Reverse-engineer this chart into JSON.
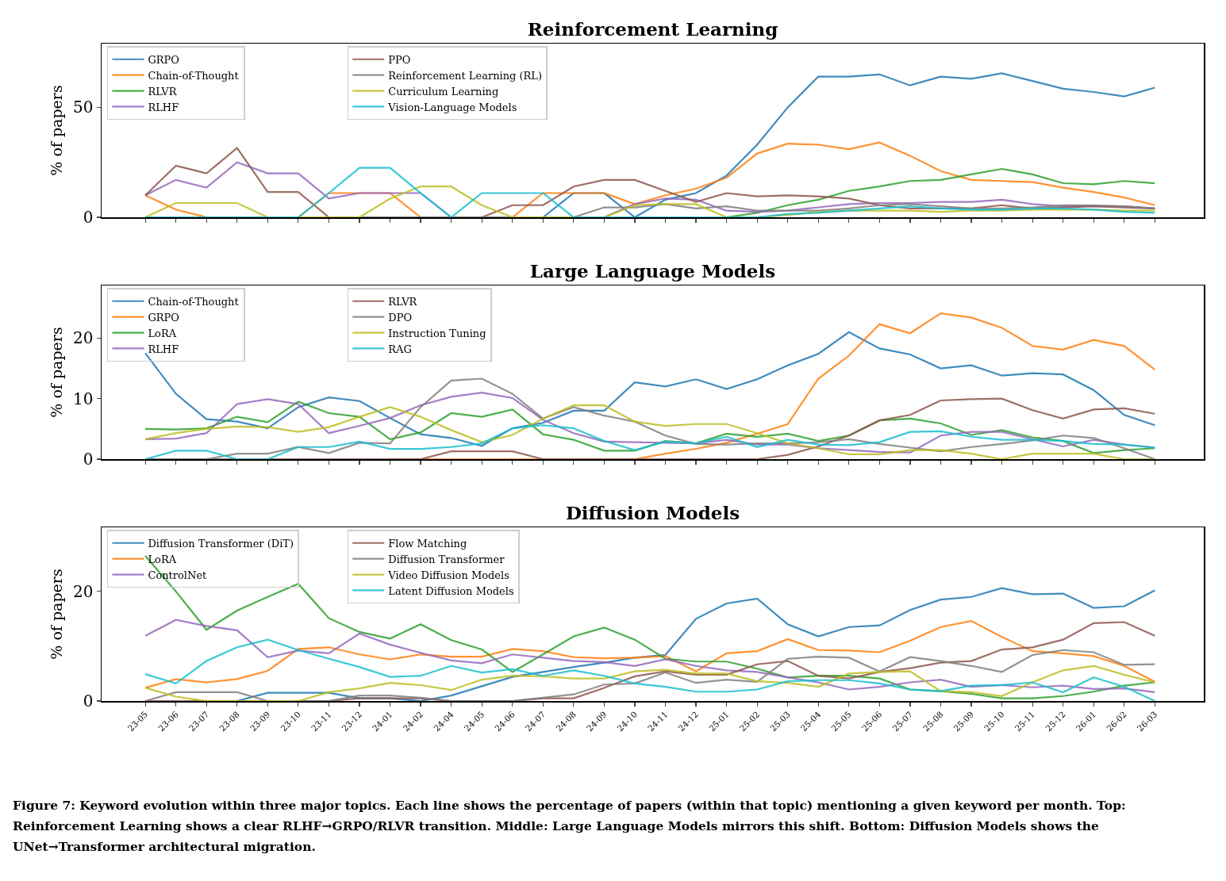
{
  "chart_data": [
    {
      "type": "line",
      "title": "Reinforcement Learning",
      "ylabel": "% of papers",
      "legend": "top left",
      "tick_labels": "y",
      "categories": [
        "23-05",
        "23-06",
        "23-07",
        "23-08",
        "23-09",
        "23-10",
        "23-11",
        "23-12",
        "24-01",
        "24-02",
        "24-04",
        "24-05",
        "24-06",
        "24-07",
        "24-08",
        "24-09",
        "24-10",
        "24-11",
        "24-12",
        "25-01",
        "25-02",
        "25-03",
        "25-04",
        "25-05",
        "25-06",
        "25-07",
        "25-08",
        "25-09",
        "25-10",
        "25-11",
        "25-12",
        "26-01",
        "26-02",
        "26-03"
      ],
      "ylim": [
        0,
        79
      ],
      "yticks": [
        0,
        50
      ],
      "series": [
        {
          "name": "GRPO",
          "color": "#1f77b4",
          "values": [
            null,
            null,
            null,
            null,
            null,
            null,
            null,
            null,
            null,
            null,
            null,
            null,
            null,
            0,
            11,
            11,
            0,
            8,
            11,
            19,
            33,
            50,
            64,
            64,
            65,
            60,
            64,
            63,
            65.5,
            62,
            58.5,
            57,
            55,
            59
          ]
        },
        {
          "name": "Chain-of-Thought",
          "color": "#ff7f0e",
          "values": [
            10,
            3.5,
            0,
            0,
            0,
            0,
            11,
            11,
            11,
            0,
            0,
            0,
            0,
            11,
            11,
            11,
            6,
            10,
            13,
            18,
            29,
            33.5,
            33,
            31,
            34,
            28,
            21,
            17,
            16.5,
            16,
            13.5,
            11.5,
            9,
            5.5
          ]
        },
        {
          "name": "RLVR",
          "color": "#2ca02c",
          "values": [
            null,
            null,
            null,
            null,
            null,
            null,
            null,
            null,
            null,
            null,
            null,
            null,
            null,
            null,
            null,
            null,
            null,
            null,
            null,
            0,
            2,
            5.5,
            8,
            12,
            14,
            16.5,
            17,
            19.5,
            22,
            19.5,
            15.5,
            15,
            16.5,
            15.5
          ]
        },
        {
          "name": "RLHF",
          "color": "#9467bd",
          "values": [
            10,
            17,
            13.5,
            25,
            20,
            20,
            8.5,
            11,
            11,
            11,
            0,
            0,
            0,
            0,
            0,
            0,
            6,
            8.5,
            8,
            3,
            2.5,
            3,
            4.5,
            6,
            6.5,
            6.5,
            7,
            7,
            8,
            6,
            5,
            5,
            5,
            4
          ]
        },
        {
          "name": "PPO",
          "color": "#8c564b",
          "values": [
            10,
            23.5,
            20,
            31.5,
            11.5,
            11.5,
            0,
            0,
            0,
            0,
            0,
            0,
            5.5,
            5.5,
            14,
            17,
            17,
            12,
            7,
            11,
            9.5,
            10,
            9.5,
            8.5,
            5.5,
            4,
            4,
            4,
            5.5,
            4,
            4.5,
            5,
            4.5,
            4
          ]
        },
        {
          "name": "Reinforcement Learning (RL)",
          "color": "#7f7f7f",
          "values": [
            0,
            0,
            0,
            0,
            0,
            0,
            0,
            0,
            0,
            0,
            0,
            0,
            0,
            0,
            0,
            4.5,
            4.5,
            6,
            4,
            5,
            3,
            3,
            3,
            4,
            5.5,
            6,
            5,
            4,
            4,
            4.5,
            5.5,
            5.5,
            5,
            4
          ]
        },
        {
          "name": "Curriculum Learning",
          "color": "#bcbd22",
          "values": [
            0,
            6.5,
            6.5,
            6.5,
            0,
            0,
            0,
            0,
            8.5,
            14,
            14,
            5.5,
            0,
            0,
            0,
            0,
            5.5,
            6,
            6,
            0,
            0,
            1,
            2.5,
            3,
            3,
            3,
            2.5,
            3,
            3,
            3.5,
            3.5,
            3.5,
            3,
            3
          ]
        },
        {
          "name": "Vision-Language Models",
          "color": "#17becf",
          "values": [
            0,
            0,
            0,
            0,
            0,
            0,
            11,
            22.5,
            22.5,
            11,
            0,
            11,
            11,
            11,
            0,
            0,
            0,
            0,
            0,
            0,
            0,
            1.5,
            2,
            3,
            4,
            5,
            4,
            3.5,
            3.5,
            4,
            4,
            3.5,
            2.5,
            2
          ]
        }
      ]
    },
    {
      "type": "line",
      "title": "Large Language Models",
      "ylabel": "% of papers",
      "legend": "top left",
      "tick_labels": "y",
      "categories": [
        "23-05",
        "23-06",
        "23-07",
        "23-08",
        "23-09",
        "23-10",
        "23-11",
        "23-12",
        "24-01",
        "24-02",
        "24-04",
        "24-05",
        "24-06",
        "24-07",
        "24-08",
        "24-09",
        "24-10",
        "24-11",
        "24-12",
        "25-01",
        "25-02",
        "25-03",
        "25-04",
        "25-05",
        "25-06",
        "25-07",
        "25-08",
        "25-09",
        "25-10",
        "25-11",
        "25-12",
        "26-01",
        "26-02",
        "26-03"
      ],
      "ylim": [
        0,
        28.7
      ],
      "yticks": [
        0,
        10,
        20
      ],
      "series": [
        {
          "name": "Chain-of-Thought",
          "color": "#1f77b4",
          "values": [
            17.5,
            10.8,
            6.6,
            6.2,
            5.1,
            8.6,
            10.2,
            9.6,
            6.8,
            4.1,
            3.5,
            2.2,
            5.1,
            6,
            8,
            8,
            12.7,
            12,
            13.2,
            11.6,
            13.2,
            15.5,
            17.4,
            21,
            18.3,
            17.3,
            15,
            15.5,
            13.8,
            14.2,
            14,
            11.4,
            7.3,
            5.6
          ]
        },
        {
          "name": "GRPO",
          "color": "#ff7f0e",
          "values": [
            null,
            null,
            null,
            null,
            null,
            null,
            null,
            null,
            0,
            0,
            0,
            0,
            0,
            0,
            0,
            0,
            0,
            0.9,
            1.7,
            2.7,
            4.2,
            5.8,
            13.3,
            17.1,
            22.3,
            20.8,
            24.1,
            23.4,
            21.7,
            18.7,
            18.1,
            19.7,
            18.7,
            14.8
          ]
        },
        {
          "name": "LoRA",
          "color": "#2ca02c",
          "values": [
            5,
            4.9,
            5.1,
            7,
            6.1,
            9.5,
            7.6,
            7,
            3.3,
            4.4,
            7.6,
            7,
            8.2,
            4.1,
            3.2,
            1.4,
            1.4,
            3,
            2.6,
            4.2,
            3.7,
            4.2,
            3,
            3.9,
            6.4,
            6.7,
            5.9,
            4,
            4.8,
            3.6,
            3,
            1,
            1.5,
            1.8
          ]
        },
        {
          "name": "RLHF",
          "color": "#9467bd",
          "values": [
            3.3,
            3.4,
            4.3,
            9.1,
            9.9,
            9.1,
            4.3,
            5.5,
            6.8,
            8.9,
            10.3,
            11,
            10.1,
            6.5,
            4.3,
            2.9,
            2.8,
            2.7,
            2.6,
            3.2,
            2.4,
            2.4,
            1.8,
            1.5,
            1.2,
            1.1,
            3.9,
            4.5,
            4.5,
            3.3,
            2.1,
            3.2,
            2.4,
            1.9
          ]
        },
        {
          "name": "RLVR",
          "color": "#8c564b",
          "values": [
            0,
            0,
            0,
            0,
            0,
            0,
            0,
            0,
            0,
            0,
            1.3,
            1.3,
            1.3,
            0,
            0,
            0,
            0,
            0,
            0,
            0,
            0,
            0.7,
            2.1,
            3.9,
            6.4,
            7.3,
            9.7,
            9.9,
            10,
            8.1,
            6.7,
            8.2,
            8.4,
            7.5
          ]
        },
        {
          "name": "DPO",
          "color": "#7f7f7f",
          "values": [
            0,
            0,
            0,
            0.9,
            0.9,
            2,
            1,
            2.7,
            2.6,
            8.6,
            13,
            13.3,
            10.8,
            6.7,
            8.6,
            7.2,
            6.2,
            3.9,
            2.5,
            2.4,
            2.6,
            2.6,
            2.8,
            3.3,
            2.5,
            1.9,
            1.3,
            2,
            2.5,
            3.1,
            3.9,
            3.5,
            1.8,
            0
          ]
        },
        {
          "name": "Instruction Tuning",
          "color": "#bcbd22",
          "values": [
            3.3,
            4.3,
            5,
            5.4,
            5.3,
            4.5,
            5.3,
            7,
            8.6,
            7,
            4.8,
            2.8,
            4,
            6.7,
            8.9,
            8.9,
            6.2,
            5.5,
            5.8,
            5.8,
            4.3,
            2.6,
            1.8,
            0.8,
            0.8,
            1.5,
            1.5,
            0.9,
            0,
            0.9,
            0.9,
            0.9,
            0,
            0
          ]
        },
        {
          "name": "RAG",
          "color": "#17becf",
          "values": [
            0,
            1.4,
            1.4,
            0,
            0,
            2,
            2,
            2.9,
            1.7,
            1.7,
            2,
            2.6,
            5.1,
            5.6,
            5.1,
            3,
            1.5,
            2.9,
            2.6,
            3.7,
            2,
            3.2,
            2.4,
            2.3,
            2.8,
            4.5,
            4.6,
            3.7,
            3.2,
            3.2,
            3,
            2.5,
            2.4,
            1.9
          ]
        }
      ]
    },
    {
      "type": "line",
      "title": "Diffusion Models",
      "ylabel": "% of papers",
      "legend": "top left",
      "categories": [
        "23-05",
        "23-06",
        "23-07",
        "23-08",
        "23-09",
        "23-10",
        "23-11",
        "23-12",
        "24-01",
        "24-02",
        "24-04",
        "24-05",
        "24-06",
        "24-07",
        "24-08",
        "24-09",
        "24-10",
        "24-11",
        "24-12",
        "25-01",
        "25-02",
        "25-03",
        "25-04",
        "25-05",
        "25-06",
        "25-07",
        "25-08",
        "25-09",
        "25-10",
        "25-11",
        "25-12",
        "26-01",
        "26-02",
        "26-03"
      ],
      "ylim": [
        0,
        31.7
      ],
      "yticks": [
        0,
        20
      ],
      "series": [
        {
          "name": "Diffusion Transformer (DiT)",
          "color": "#1f77b4",
          "values": [
            null,
            null,
            null,
            0,
            1.5,
            1.5,
            1.5,
            0.5,
            0.5,
            0,
            1,
            2.7,
            4.4,
            5.3,
            6.2,
            7,
            7.9,
            8.4,
            15,
            17.8,
            18.7,
            14,
            11.8,
            13.5,
            13.8,
            16.6,
            18.5,
            19,
            20.6,
            19.5,
            19.6,
            17,
            17.3,
            20.2
          ]
        },
        {
          "name": "LoRA",
          "color": "#ff7f0e",
          "values": [
            2.4,
            4,
            3.4,
            4,
            5.5,
            9.5,
            9.8,
            8.5,
            7.6,
            8.5,
            8.1,
            8.1,
            9.5,
            9.1,
            8,
            7.8,
            7.9,
            8.2,
            5.4,
            8.7,
            9.1,
            11.3,
            9.3,
            9.2,
            8.9,
            11,
            13.5,
            14.6,
            11.7,
            9.1,
            8.7,
            8.2,
            6.4,
            3.5
          ]
        },
        {
          "color": "#2ca02c",
          "values": [
            26.5,
            20,
            13,
            16.5,
            19,
            21.4,
            15.1,
            12.6,
            11.4,
            14,
            11.1,
            9.4,
            5.3,
            8.5,
            11.8,
            13.4,
            11.2,
            7.7,
            7.2,
            7.2,
            5.9,
            4.3,
            4.6,
            4.6,
            4.1,
            2.1,
            1.8,
            1.3,
            0.5,
            0.5,
            0.9,
            1.7,
            2.8,
            3.4
          ]
        },
        {
          "name": "ControlNet",
          "color": "#9467bd",
          "values": [
            11.9,
            14.8,
            13.7,
            12.9,
            8,
            9.2,
            8.7,
            12.3,
            10.3,
            8.8,
            7.4,
            6.9,
            8.5,
            7.9,
            7.3,
            7.1,
            6.4,
            7.6,
            6.4,
            5.6,
            5.3,
            4.3,
            3.4,
            2.1,
            2.6,
            3.4,
            3.9,
            2.6,
            2.9,
            2.5,
            2.8,
            2.2,
            2.3,
            1.6
          ]
        },
        {
          "name": "Flow Matching",
          "color": "#8c564b",
          "values": [
            0,
            0,
            0,
            0,
            0,
            0,
            0,
            0.5,
            0.5,
            0.5,
            0,
            0,
            0,
            0.5,
            0.5,
            2.4,
            4.5,
            5.4,
            4.8,
            4.8,
            6.7,
            7.3,
            4.6,
            4.1,
            5.3,
            6,
            7,
            7.3,
            9.4,
            9.8,
            11.2,
            14.2,
            14.4,
            11.9
          ]
        },
        {
          "name": "Diffusion Transformer",
          "color": "#7f7f7f",
          "values": [
            0,
            1.6,
            1.6,
            1.6,
            0,
            0,
            0,
            1,
            1,
            0.6,
            0,
            0,
            0,
            0.6,
            1.2,
            3,
            3.2,
            5.2,
            3.3,
            3.9,
            3.5,
            7.7,
            8.1,
            7.9,
            5.4,
            8,
            7.3,
            6.4,
            5.3,
            8.4,
            9.3,
            8.9,
            6.6,
            6.7
          ]
        },
        {
          "name": "Video Diffusion Models",
          "color": "#bcbd22",
          "values": [
            2.4,
            0.8,
            0,
            0,
            0,
            0,
            1.6,
            2.3,
            3.3,
            2.9,
            2,
            3.9,
            4.6,
            4.5,
            4.1,
            4.1,
            5.4,
            5.7,
            5,
            5,
            3.6,
            3.3,
            2.6,
            5,
            5.3,
            5.4,
            1.8,
            1.6,
            0.9,
            3.4,
            5.6,
            6.4,
            4.8,
            3.4
          ]
        },
        {
          "name": "Latent Diffusion Models",
          "color": "#17becf",
          "values": [
            4.9,
            3.2,
            7.3,
            9.8,
            11.2,
            9.3,
            7.7,
            6.2,
            4.4,
            4.6,
            6.4,
            5.2,
            5.8,
            4.6,
            5.6,
            4.6,
            3.2,
            2.6,
            1.7,
            1.7,
            2.1,
            3.6,
            3.8,
            3.8,
            3.2,
            2.1,
            1.8,
            2.8,
            2.9,
            3.4,
            1.6,
            4.3,
            2.6,
            0
          ]
        }
      ],
      "annotations": [
        "Figure 7: Keyword evolution within three major topics. Each line shows the percentage of papers (within that topic) mentioning a given keyword per month. Top: Reinforcement Learning shows a clear RLHF→GRPO/RLVR transition. Middle: Large Language Models mirrors this shift. Bottom: Diffusion Models shows the UNet→Transformer architectural migration."
      ]
    }
  ]
}
